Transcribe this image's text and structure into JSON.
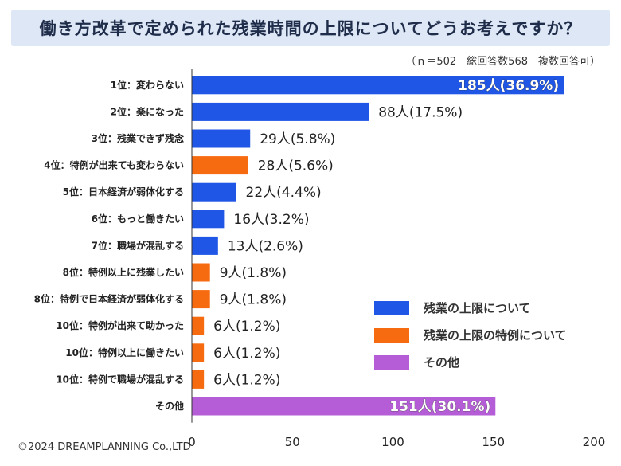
{
  "title": "働き方改革で定められた残業時間の上限についてどうお考えですか？",
  "sample_note": "（ｎ＝502　総回答数568　複数回答可）",
  "copyright": "©2024 DREAMPLANNING Co.,LTD",
  "colors": {
    "blue": "#1f56e6",
    "orange": "#f76b10",
    "purple": "#b45dd6",
    "title_bg": "#dde7f6"
  },
  "chart_data": {
    "type": "bar",
    "orientation": "horizontal",
    "xlim": [
      0,
      200
    ],
    "xticks": [
      0,
      50,
      100,
      150,
      200
    ],
    "grid": false,
    "legend_position": "bottom-right",
    "legend": [
      {
        "label": "残業の上限について",
        "color": "#1f56e6"
      },
      {
        "label": "残業の上限の特例について",
        "color": "#f76b10"
      },
      {
        "label": "その他",
        "color": "#b45dd6"
      }
    ],
    "bars": [
      {
        "category": "1位：変わらない",
        "value": 185,
        "label": "185人(36.9%)",
        "group": "blue"
      },
      {
        "category": "2位：楽になった",
        "value": 88,
        "label": "88人(17.5%)",
        "group": "blue"
      },
      {
        "category": "3位：残業できず残念",
        "value": 29,
        "label": "29人(5.8%)",
        "group": "blue"
      },
      {
        "category": "4位：特例が出来ても変わらない",
        "value": 28,
        "label": "28人(5.6%)",
        "group": "orange"
      },
      {
        "category": "5位：日本経済が弱体化する",
        "value": 22,
        "label": "22人(4.4%)",
        "group": "blue"
      },
      {
        "category": "6位：もっと働きたい",
        "value": 16,
        "label": "16人(3.2%)",
        "group": "blue"
      },
      {
        "category": "7位：職場が混乱する",
        "value": 13,
        "label": "13人(2.6%)",
        "group": "blue"
      },
      {
        "category": "8位：特例以上に残業したい",
        "value": 9,
        "label": "9人(1.8%)",
        "group": "orange"
      },
      {
        "category": "8位：特例で日本経済が弱体化する",
        "value": 9,
        "label": "9人(1.8%)",
        "group": "orange"
      },
      {
        "category": "10位：特例が出来て助かった",
        "value": 6,
        "label": "6人(1.2%)",
        "group": "orange"
      },
      {
        "category": "10位：特例以上に働きたい",
        "value": 6,
        "label": "6人(1.2%)",
        "group": "orange"
      },
      {
        "category": "10位：特例で職場が混乱する",
        "value": 6,
        "label": "6人(1.2%)",
        "group": "orange"
      },
      {
        "category": "その他",
        "value": 151,
        "label": "151人(30.1%)",
        "group": "purple"
      }
    ]
  }
}
